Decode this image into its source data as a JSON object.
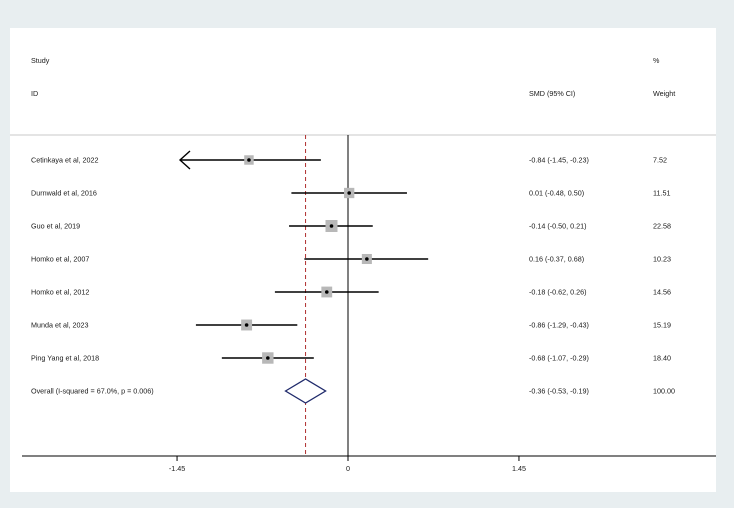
{
  "chart_data": {
    "type": "forest",
    "headers": {
      "study_line1": "Study",
      "study_line2": "ID",
      "effect": "SMD (95% CI)",
      "weight_line1": "%",
      "weight_line2": "Weight"
    },
    "studies": [
      {
        "label": "Cetinkaya et al, 2022",
        "smd": -0.84,
        "ci": [
          -1.45,
          -0.23
        ],
        "ci_text": "-0.84 (-1.45, -0.23)",
        "weight": 7.52,
        "weight_text": "7.52",
        "ci_clipped_left": true
      },
      {
        "label": "Durnwald et al, 2016",
        "smd": 0.01,
        "ci": [
          -0.48,
          0.5
        ],
        "ci_text": "0.01 (-0.48, 0.50)",
        "weight": 11.51,
        "weight_text": "11.51"
      },
      {
        "label": "Guo et al, 2019",
        "smd": -0.14,
        "ci": [
          -0.5,
          0.21
        ],
        "ci_text": "-0.14 (-0.50, 0.21)",
        "weight": 22.58,
        "weight_text": "22.58"
      },
      {
        "label": "Homko et al, 2007",
        "smd": 0.16,
        "ci": [
          -0.37,
          0.68
        ],
        "ci_text": "0.16 (-0.37, 0.68)",
        "weight": 10.23,
        "weight_text": "10.23"
      },
      {
        "label": "Homko et al, 2012",
        "smd": -0.18,
        "ci": [
          -0.62,
          0.26
        ],
        "ci_text": "-0.18 (-0.62, 0.26)",
        "weight": 14.56,
        "weight_text": "14.56"
      },
      {
        "label": "Munda et al, 2023",
        "smd": -0.86,
        "ci": [
          -1.29,
          -0.43
        ],
        "ci_text": "-0.86 (-1.29, -0.43)",
        "weight": 15.19,
        "weight_text": "15.19"
      },
      {
        "label": "Ping Yang et al, 2018",
        "smd": -0.68,
        "ci": [
          -1.07,
          -0.29
        ],
        "ci_text": "-0.68 (-1.07, -0.29)",
        "weight": 18.4,
        "weight_text": "18.40"
      }
    ],
    "overall": {
      "label": "Overall  (I-squared = 67.0%, p = 0.006)",
      "smd": -0.36,
      "ci": [
        -0.53,
        -0.19
      ],
      "ci_text": "-0.36 (-0.53, -0.19)",
      "weight_text": "100.00"
    },
    "x_axis": {
      "ticks": [
        -1.45,
        0,
        1.45
      ],
      "tick_labels": [
        "-1.45",
        "0",
        "1.45"
      ],
      "null_line": 0
    },
    "colors": {
      "box": "#b8b8b8",
      "diamond": "#1f2a6b",
      "overall_line": "#b03030",
      "line": "#000000",
      "separator": "#c8c8c8"
    }
  }
}
